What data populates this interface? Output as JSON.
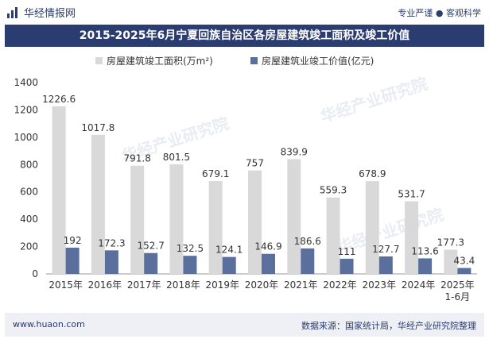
{
  "header": {
    "brand": "华经情报网",
    "tagline": "专业严谨 ● 客观科学"
  },
  "footer": {
    "url": "www.huaon.com",
    "source": "数据来源：国家统计局，华经产业研究院整理"
  },
  "watermark": "华经产业研究院",
  "colors": {
    "area": "#d9d9d9",
    "value": "#5b6f9c",
    "title_bg": "#2a3c70"
  },
  "chart_data": {
    "type": "bar",
    "title": "2015-2025年6月宁夏回族自治区各房屋建筑竣工面积及竣工价值",
    "categories": [
      "2015年",
      "2016年",
      "2017年",
      "2018年",
      "2019年",
      "2020年",
      "2021年",
      "2022年",
      "2023年",
      "2024年",
      "2025年\n1-6月"
    ],
    "series": [
      {
        "name": "房屋建筑竣工面积(万m²)",
        "values": [
          1226.6,
          1017.8,
          791.8,
          801.5,
          679.1,
          757,
          839.9,
          559.3,
          678.9,
          531.7,
          177.3
        ]
      },
      {
        "name": "房屋建筑业竣工价值(亿元)",
        "values": [
          192,
          172.3,
          152.7,
          132.5,
          124.1,
          146.9,
          186.6,
          111,
          127.7,
          113.6,
          43.4
        ]
      }
    ],
    "ylim": [
      0,
      1400
    ],
    "yticks": [
      0,
      200,
      400,
      600,
      800,
      1000,
      1200,
      1400
    ],
    "legend": "top-center",
    "grid": false
  }
}
